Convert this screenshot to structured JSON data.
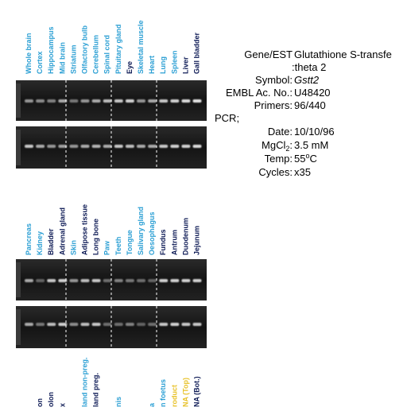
{
  "panel_1_labels": [
    {
      "text": "Whole brain",
      "color": "#2b9fd4"
    },
    {
      "text": "Cortex",
      "color": "#2b9fd4"
    },
    {
      "text": "Hippocampus",
      "color": "#2b9fd4"
    },
    {
      "text": "Mid brain",
      "color": "#2b9fd4"
    },
    {
      "text": "Striatum",
      "color": "#2b9fd4"
    },
    {
      "text": "Olfactory bulb",
      "color": "#2b9fd4"
    },
    {
      "text": "Cerebellum",
      "color": "#2b9fd4"
    },
    {
      "text": "Spinal cord",
      "color": "#2b9fd4"
    },
    {
      "text": "Pituitary gland",
      "color": "#2b9fd4"
    },
    {
      "text": "Eye",
      "color": "#0d1a55"
    },
    {
      "text": "Skeletal muscle",
      "color": "#2b9fd4"
    },
    {
      "text": "Heart",
      "color": "#2b9fd4"
    },
    {
      "text": "Lung",
      "color": "#2b9fd4"
    },
    {
      "text": "Spleen",
      "color": "#2b9fd4"
    },
    {
      "text": "Liver",
      "color": "#0d1a55"
    },
    {
      "text": "Gall bladder",
      "color": "#0d1a55"
    }
  ],
  "panel_2_labels": [
    {
      "text": "Pancreas",
      "color": "#2b9fd4"
    },
    {
      "text": "Kidney",
      "color": "#2b9fd4"
    },
    {
      "text": "Bladder",
      "color": "#0d1a55"
    },
    {
      "text": "Adrenal gland",
      "color": "#0d1a55"
    },
    {
      "text": "Skin",
      "color": "#2b9fd4"
    },
    {
      "text": "Adipose tissue",
      "color": "#0d1a55"
    },
    {
      "text": "Long bone",
      "color": "#0d1a55"
    },
    {
      "text": "Paw",
      "color": "#2b9fd4"
    },
    {
      "text": "Teeth",
      "color": "#2b9fd4"
    },
    {
      "text": "Tongue",
      "color": "#2b9fd4"
    },
    {
      "text": "Salivary gland",
      "color": "#2b9fd4"
    },
    {
      "text": "Oesophagus",
      "color": "#2b9fd4"
    },
    {
      "text": "Fundus",
      "color": "#0d1a55"
    },
    {
      "text": "Antrum",
      "color": "#0d1a55"
    },
    {
      "text": "Duodenum",
      "color": "#0d1a55"
    },
    {
      "text": "Jejunum",
      "color": "#0d1a55"
    }
  ],
  "panel_3_labels": [
    {
      "text": "on",
      "color": "#0d1a55",
      "lane": 2
    },
    {
      "text": "olon",
      "color": "#0d1a55",
      "lane": 3
    },
    {
      "text": "x",
      "color": "#0d1a55",
      "lane": 4
    },
    {
      "text": "land non-preg.",
      "color": "#2b9fd4",
      "lane": 6
    },
    {
      "text": "land preg.",
      "color": "#0d1a55",
      "lane": 7
    },
    {
      "text": "nis",
      "color": "#2b9fd4",
      "lane": 9
    },
    {
      "text": "a",
      "color": "#2b9fd4",
      "lane": 12
    },
    {
      "text": "n foetus",
      "color": "#2b9fd4",
      "lane": 13
    },
    {
      "text": "roduct",
      "color": "#e8c229",
      "lane": 14
    },
    {
      "text": "NA (Top)",
      "color": "#e8c229",
      "lane": 15
    },
    {
      "text": "NA (Bot.)",
      "color": "#0d1a55",
      "lane": 16
    }
  ],
  "info": {
    "gene_label": "Gene/EST",
    "gene_value": "Glutathione S-transfe",
    "gene_value_2": ":theta 2",
    "symbol_label": "Symbol:",
    "symbol_value": "Gstt2",
    "embl_label": "EMBL Ac. No.:",
    "embl_value": "U48420",
    "primers_label": "Primers:",
    "primers_value": "96/440",
    "pcr": "PCR;",
    "date_label": "Date:",
    "date_value": "10/10/96",
    "mgcl_label": "MgCl",
    "mgcl_sub": "2",
    "mgcl_colon": ":",
    "mgcl_value": "3.5 mM",
    "temp_label": "Temp:",
    "temp_value": "55",
    "temp_sup": "o",
    "temp_unit": "C",
    "cycles_label": "Cycles:",
    "cycles_value": "x35"
  }
}
